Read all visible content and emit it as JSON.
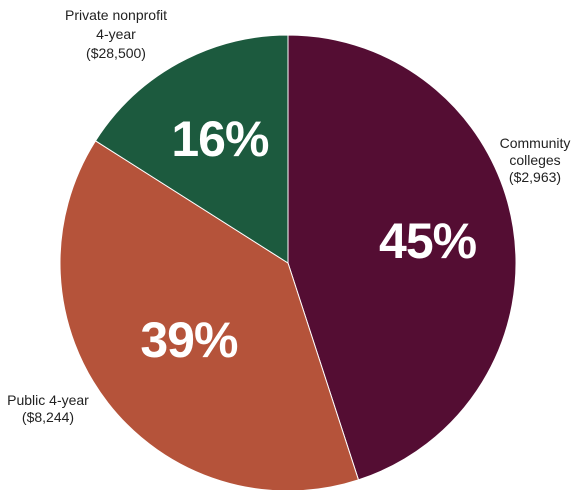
{
  "chart_data": {
    "type": "pie",
    "title": "",
    "slices": [
      {
        "label_lines": [
          "Community",
          "colleges",
          "($2,963)"
        ],
        "value": 45,
        "percent_label": "45%",
        "color": "#540d33"
      },
      {
        "label_lines": [
          "Public 4-year",
          "($8,244)"
        ],
        "value": 39,
        "percent_label": "39%",
        "color": "#b5533a"
      },
      {
        "label_lines": [
          "Private nonprofit",
          "4-year",
          "($28,500)"
        ],
        "value": 16,
        "percent_label": "16%",
        "color": "#1c5a3e"
      }
    ]
  }
}
